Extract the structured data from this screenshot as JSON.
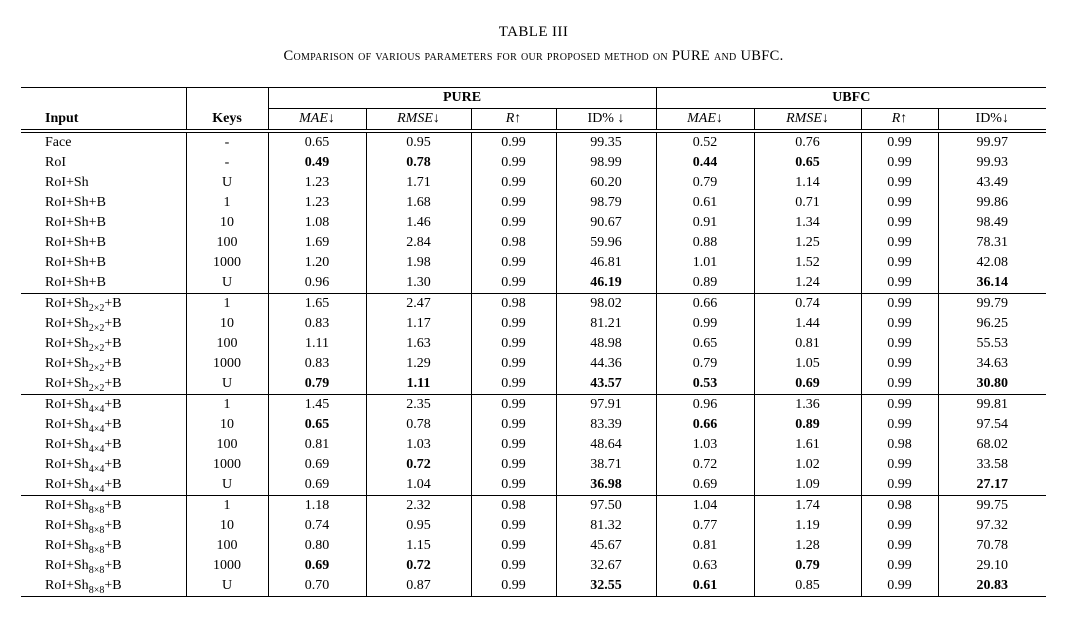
{
  "title": "TABLE III",
  "subtitle": "Comparison of various parameters for our proposed method on PURE and UBFC.",
  "table": {
    "group_headers": [
      {
        "label": "PURE"
      },
      {
        "label": "UBFC"
      }
    ],
    "columns": [
      {
        "label": "Input",
        "bold": true,
        "italic": false,
        "align": "left"
      },
      {
        "label": "Keys",
        "bold": true,
        "italic": false,
        "align": "center"
      },
      {
        "label": "MAE↓",
        "bold": false,
        "italic": true,
        "align": "center"
      },
      {
        "label": "RMSE↓",
        "bold": false,
        "italic": true,
        "align": "center"
      },
      {
        "label": "R↑",
        "bold": false,
        "italic": true,
        "align": "center"
      },
      {
        "label": "ID% ↓",
        "bold": false,
        "italic": false,
        "align": "center"
      },
      {
        "label": "MAE↓",
        "bold": false,
        "italic": true,
        "align": "center"
      },
      {
        "label": "RMSE↓",
        "bold": false,
        "italic": true,
        "align": "center"
      },
      {
        "label": "R↑",
        "bold": false,
        "italic": true,
        "align": "center"
      },
      {
        "label": "ID%↓",
        "bold": false,
        "italic": false,
        "align": "center"
      }
    ],
    "rows": [
      {
        "input": {
          "base": "Face",
          "sub": "",
          "suffix": ""
        },
        "keys": "-",
        "section_start": false,
        "values": [
          "0.65",
          "0.95",
          "0.99",
          "99.35",
          "0.52",
          "0.76",
          "0.99",
          "99.97"
        ],
        "bold": [
          false,
          false,
          false,
          false,
          false,
          false,
          false,
          false
        ]
      },
      {
        "input": {
          "base": "RoI",
          "sub": "",
          "suffix": ""
        },
        "keys": "-",
        "section_start": false,
        "values": [
          "0.49",
          "0.78",
          "0.99",
          "98.99",
          "0.44",
          "0.65",
          "0.99",
          "99.93"
        ],
        "bold": [
          true,
          true,
          false,
          false,
          true,
          true,
          false,
          false
        ]
      },
      {
        "input": {
          "base": "RoI+Sh",
          "sub": "",
          "suffix": ""
        },
        "keys": "U",
        "section_start": false,
        "values": [
          "1.23",
          "1.71",
          "0.99",
          "60.20",
          "0.79",
          "1.14",
          "0.99",
          "43.49"
        ],
        "bold": [
          false,
          false,
          false,
          false,
          false,
          false,
          false,
          false
        ]
      },
      {
        "input": {
          "base": "RoI+Sh+B",
          "sub": "",
          "suffix": ""
        },
        "keys": "1",
        "section_start": false,
        "values": [
          "1.23",
          "1.68",
          "0.99",
          "98.79",
          "0.61",
          "0.71",
          "0.99",
          "99.86"
        ],
        "bold": [
          false,
          false,
          false,
          false,
          false,
          false,
          false,
          false
        ]
      },
      {
        "input": {
          "base": "RoI+Sh+B",
          "sub": "",
          "suffix": ""
        },
        "keys": "10",
        "section_start": false,
        "values": [
          "1.08",
          "1.46",
          "0.99",
          "90.67",
          "0.91",
          "1.34",
          "0.99",
          "98.49"
        ],
        "bold": [
          false,
          false,
          false,
          false,
          false,
          false,
          false,
          false
        ]
      },
      {
        "input": {
          "base": "RoI+Sh+B",
          "sub": "",
          "suffix": ""
        },
        "keys": "100",
        "section_start": false,
        "values": [
          "1.69",
          "2.84",
          "0.98",
          "59.96",
          "0.88",
          "1.25",
          "0.99",
          "78.31"
        ],
        "bold": [
          false,
          false,
          false,
          false,
          false,
          false,
          false,
          false
        ]
      },
      {
        "input": {
          "base": "RoI+Sh+B",
          "sub": "",
          "suffix": ""
        },
        "keys": "1000",
        "section_start": false,
        "values": [
          "1.20",
          "1.98",
          "0.99",
          "46.81",
          "1.01",
          "1.52",
          "0.99",
          "42.08"
        ],
        "bold": [
          false,
          false,
          false,
          false,
          false,
          false,
          false,
          false
        ]
      },
      {
        "input": {
          "base": "RoI+Sh+B",
          "sub": "",
          "suffix": ""
        },
        "keys": "U",
        "section_start": false,
        "values": [
          "0.96",
          "1.30",
          "0.99",
          "46.19",
          "0.89",
          "1.24",
          "0.99",
          "36.14"
        ],
        "bold": [
          false,
          false,
          false,
          true,
          false,
          false,
          false,
          true
        ]
      },
      {
        "input": {
          "base": "RoI+Sh",
          "sub": "2×2",
          "suffix": "+B"
        },
        "keys": "1",
        "section_start": true,
        "values": [
          "1.65",
          "2.47",
          "0.98",
          "98.02",
          "0.66",
          "0.74",
          "0.99",
          "99.79"
        ],
        "bold": [
          false,
          false,
          false,
          false,
          false,
          false,
          false,
          false
        ]
      },
      {
        "input": {
          "base": "RoI+Sh",
          "sub": "2×2",
          "suffix": "+B"
        },
        "keys": "10",
        "section_start": false,
        "values": [
          "0.83",
          "1.17",
          "0.99",
          "81.21",
          "0.99",
          "1.44",
          "0.99",
          "96.25"
        ],
        "bold": [
          false,
          false,
          false,
          false,
          false,
          false,
          false,
          false
        ]
      },
      {
        "input": {
          "base": "RoI+Sh",
          "sub": "2×2",
          "suffix": "+B"
        },
        "keys": "100",
        "section_start": false,
        "values": [
          "1.11",
          "1.63",
          "0.99",
          "48.98",
          "0.65",
          "0.81",
          "0.99",
          "55.53"
        ],
        "bold": [
          false,
          false,
          false,
          false,
          false,
          false,
          false,
          false
        ]
      },
      {
        "input": {
          "base": "RoI+Sh",
          "sub": "2×2",
          "suffix": "+B"
        },
        "keys": "1000",
        "section_start": false,
        "values": [
          "0.83",
          "1.29",
          "0.99",
          "44.36",
          "0.79",
          "1.05",
          "0.99",
          "34.63"
        ],
        "bold": [
          false,
          false,
          false,
          false,
          false,
          false,
          false,
          false
        ]
      },
      {
        "input": {
          "base": "RoI+Sh",
          "sub": "2×2",
          "suffix": "+B"
        },
        "keys": "U",
        "section_start": false,
        "values": [
          "0.79",
          "1.11",
          "0.99",
          "43.57",
          "0.53",
          "0.69",
          "0.99",
          "30.80"
        ],
        "bold": [
          true,
          true,
          false,
          true,
          true,
          true,
          false,
          true
        ]
      },
      {
        "input": {
          "base": "RoI+Sh",
          "sub": "4×4",
          "suffix": "+B"
        },
        "keys": "1",
        "section_start": true,
        "values": [
          "1.45",
          "2.35",
          "0.99",
          "97.91",
          "0.96",
          "1.36",
          "0.99",
          "99.81"
        ],
        "bold": [
          false,
          false,
          false,
          false,
          false,
          false,
          false,
          false
        ]
      },
      {
        "input": {
          "base": "RoI+Sh",
          "sub": "4×4",
          "suffix": "+B"
        },
        "keys": "10",
        "section_start": false,
        "values": [
          "0.65",
          "0.78",
          "0.99",
          "83.39",
          "0.66",
          "0.89",
          "0.99",
          "97.54"
        ],
        "bold": [
          true,
          false,
          false,
          false,
          true,
          true,
          false,
          false
        ]
      },
      {
        "input": {
          "base": "RoI+Sh",
          "sub": "4×4",
          "suffix": "+B"
        },
        "keys": "100",
        "section_start": false,
        "values": [
          "0.81",
          "1.03",
          "0.99",
          "48.64",
          "1.03",
          "1.61",
          "0.98",
          "68.02"
        ],
        "bold": [
          false,
          false,
          false,
          false,
          false,
          false,
          false,
          false
        ]
      },
      {
        "input": {
          "base": "RoI+Sh",
          "sub": "4×4",
          "suffix": "+B"
        },
        "keys": "1000",
        "section_start": false,
        "values": [
          "0.69",
          "0.72",
          "0.99",
          "38.71",
          "0.72",
          "1.02",
          "0.99",
          "33.58"
        ],
        "bold": [
          false,
          true,
          false,
          false,
          false,
          false,
          false,
          false
        ]
      },
      {
        "input": {
          "base": "RoI+Sh",
          "sub": "4×4",
          "suffix": "+B"
        },
        "keys": "U",
        "section_start": false,
        "values": [
          "0.69",
          "1.04",
          "0.99",
          "36.98",
          "0.69",
          "1.09",
          "0.99",
          "27.17"
        ],
        "bold": [
          false,
          false,
          false,
          true,
          false,
          false,
          false,
          true
        ]
      },
      {
        "input": {
          "base": "RoI+Sh",
          "sub": "8×8",
          "suffix": "+B"
        },
        "keys": "1",
        "section_start": true,
        "values": [
          "1.18",
          "2.32",
          "0.98",
          "97.50",
          "1.04",
          "1.74",
          "0.98",
          "99.75"
        ],
        "bold": [
          false,
          false,
          false,
          false,
          false,
          false,
          false,
          false
        ]
      },
      {
        "input": {
          "base": "RoI+Sh",
          "sub": "8×8",
          "suffix": "+B"
        },
        "keys": "10",
        "section_start": false,
        "values": [
          "0.74",
          "0.95",
          "0.99",
          "81.32",
          "0.77",
          "1.19",
          "0.99",
          "97.32"
        ],
        "bold": [
          false,
          false,
          false,
          false,
          false,
          false,
          false,
          false
        ]
      },
      {
        "input": {
          "base": "RoI+Sh",
          "sub": "8×8",
          "suffix": "+B"
        },
        "keys": "100",
        "section_start": false,
        "values": [
          "0.80",
          "1.15",
          "0.99",
          "45.67",
          "0.81",
          "1.28",
          "0.99",
          "70.78"
        ],
        "bold": [
          false,
          false,
          false,
          false,
          false,
          false,
          false,
          false
        ]
      },
      {
        "input": {
          "base": "RoI+Sh",
          "sub": "8×8",
          "suffix": "+B"
        },
        "keys": "1000",
        "section_start": false,
        "values": [
          "0.69",
          "0.72",
          "0.99",
          "32.67",
          "0.63",
          "0.79",
          "0.99",
          "29.10"
        ],
        "bold": [
          true,
          true,
          false,
          false,
          false,
          true,
          false,
          false
        ]
      },
      {
        "input": {
          "base": "RoI+Sh",
          "sub": "8×8",
          "suffix": "+B"
        },
        "keys": "U",
        "section_start": false,
        "values": [
          "0.70",
          "0.87",
          "0.99",
          "32.55",
          "0.61",
          "0.85",
          "0.99",
          "20.83"
        ],
        "bold": [
          false,
          false,
          false,
          true,
          true,
          false,
          false,
          true
        ]
      }
    ]
  }
}
